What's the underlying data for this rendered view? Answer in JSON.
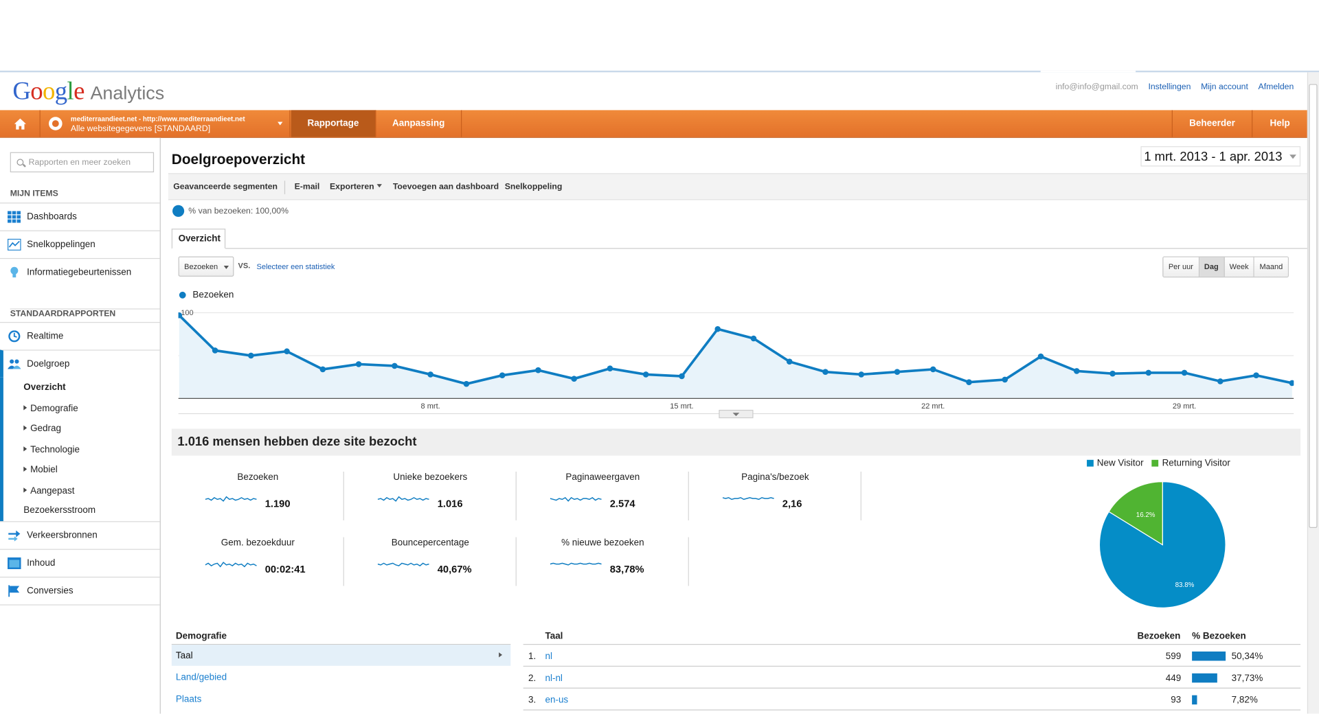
{
  "header": {
    "logo_google": "Google",
    "logo_analytics": "Analytics",
    "email": "info@info@gmail.com",
    "links": [
      "Instellingen",
      "Mijn account",
      "Afmelden"
    ]
  },
  "nav": {
    "account_line1": "mediterraandieet.net - http://www.mediterraandieet.net",
    "account_line2": "Alle websitegegevens [STANDAARD]",
    "tabs": [
      "Rapportage",
      "Aanpassing",
      "Beheerder",
      "Help"
    ],
    "active_tab": "Rapportage",
    "accent_color": "#e8782f"
  },
  "sidebar": {
    "search_placeholder": "Rapporten en meer zoeken",
    "section_my_items": "MIJN ITEMS",
    "my_items": [
      "Dashboards",
      "Snelkoppelingen",
      "Informatiegebeurtenissen"
    ],
    "section_standard": "STANDAARDRAPPORTEN",
    "realtime": "Realtime",
    "doelgroep": "Doelgroep",
    "doelgroep_sub": [
      "Overzicht",
      "Demografie",
      "Gedrag",
      "Technologie",
      "Mobiel",
      "Aangepast",
      "Bezoekersstroom"
    ],
    "bottom_items": [
      "Verkeersbronnen",
      "Inhoud",
      "Conversies"
    ]
  },
  "page": {
    "title": "Doelgroepoverzicht",
    "date_range": "1 mrt. 2013 - 1 apr. 2013",
    "actions": [
      "Geavanceerde segmenten",
      "E-mail",
      "Exporteren",
      "Toevoegen aan dashboard",
      "Snelkoppeling"
    ],
    "visits_pct": "% van bezoeken: 100,00%",
    "tab": "Overzicht",
    "metric_select": "Bezoeken",
    "vs": "VS.",
    "select_stat": "Selecteer een statistiek",
    "granularity": [
      "Per uur",
      "Dag",
      "Week",
      "Maand"
    ],
    "granularity_active": "Dag",
    "summary": "1.016 mensen hebben deze site bezocht"
  },
  "chart_data": {
    "type": "area",
    "series": [
      {
        "name": "Bezoeken",
        "values": [
          97,
          56,
          50,
          55,
          34,
          40,
          38,
          28,
          17,
          27,
          33,
          23,
          35,
          28,
          26,
          81,
          70,
          43,
          31,
          28,
          31,
          34,
          19,
          22,
          49,
          32,
          29,
          30,
          30,
          20,
          27,
          18
        ]
      }
    ],
    "x_ticks": [
      "8 mrt.",
      "15 mrt.",
      "22 mrt.",
      "29 mrt."
    ],
    "x_tick_index": [
      7,
      14,
      21,
      28
    ],
    "y_ticks": [
      "100",
      "50"
    ],
    "ylim": [
      0,
      100
    ],
    "color": "#0f7dc2",
    "fill": "#e8f3fa"
  },
  "stats": [
    {
      "name": "Bezoeken",
      "value": "1.190"
    },
    {
      "name": "Unieke bezoekers",
      "value": "1.016"
    },
    {
      "name": "Paginaweergaven",
      "value": "2.574"
    },
    {
      "name": "Pagina's/bezoek",
      "value": "2,16"
    },
    {
      "name": "Gem. bezoekduur",
      "value": "00:02:41"
    },
    {
      "name": "Bouncepercentage",
      "value": "40,67%"
    },
    {
      "name": "% nieuwe bezoeken",
      "value": "83,78%"
    }
  ],
  "pie": {
    "type": "pie",
    "slices": [
      {
        "name": "New Visitor",
        "value": 83.8,
        "label": "83.8%",
        "color": "#058dc7"
      },
      {
        "name": "Returning Visitor",
        "value": 16.2,
        "label": "16.2%",
        "color": "#50b432"
      }
    ]
  },
  "demografie": {
    "title": "Demografie",
    "items": [
      "Taal",
      "Land/gebied",
      "Plaats"
    ],
    "selected": "Taal"
  },
  "taal_table": {
    "headers": [
      "Taal",
      "Bezoeken",
      "% Bezoeken"
    ],
    "rows": [
      {
        "idx": "1.",
        "lang": "nl",
        "visits": "599",
        "pct": "50,34%",
        "share": 50.34
      },
      {
        "idx": "2.",
        "lang": "nl-nl",
        "visits": "449",
        "pct": "37,73%",
        "share": 37.73
      },
      {
        "idx": "3.",
        "lang": "en-us",
        "visits": "93",
        "pct": "7,82%",
        "share": 7.82
      }
    ]
  }
}
